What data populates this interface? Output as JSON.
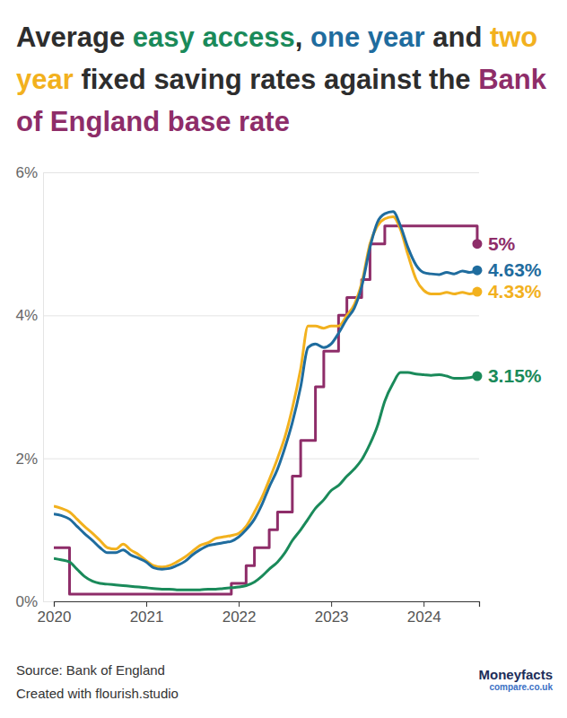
{
  "chart_data": {
    "type": "line",
    "title": "Average easy access, one year and two year fixed saving rates against the Bank of England base rate",
    "source": "Source: Bank of England",
    "credit": "Created with flourish.studio",
    "logo": "Moneyfacts",
    "logo_subtext": "compare.co.uk",
    "x": [
      2020,
      2020.08,
      2020.17,
      2020.25,
      2020.33,
      2020.42,
      2020.5,
      2020.58,
      2020.67,
      2020.75,
      2020.83,
      2020.92,
      2021,
      2021.08,
      2021.17,
      2021.25,
      2021.33,
      2021.42,
      2021.5,
      2021.58,
      2021.67,
      2021.75,
      2021.83,
      2021.92,
      2022,
      2022.08,
      2022.17,
      2022.25,
      2022.33,
      2022.42,
      2022.5,
      2022.58,
      2022.67,
      2022.75,
      2022.83,
      2022.92,
      2023,
      2023.08,
      2023.17,
      2023.25,
      2023.33,
      2023.42,
      2023.5,
      2023.58,
      2023.67,
      2023.75,
      2023.83,
      2023.92,
      2024,
      2024.08,
      2024.17,
      2024.25,
      2024.33,
      2024.42,
      2024.5,
      2024.58
    ],
    "xlim": [
      2020,
      2024.6
    ],
    "xticks": [
      2020,
      2021,
      2022,
      2023,
      2024
    ],
    "ylim": [
      0,
      6
    ],
    "yticks": [
      {
        "value": 0,
        "label": "0%"
      },
      {
        "value": 2,
        "label": "2%"
      },
      {
        "value": 4,
        "label": "4%"
      },
      {
        "value": 6,
        "label": "6%"
      }
    ],
    "grid": true,
    "data_labels": true,
    "series": [
      {
        "name": "easy access",
        "color": "#1a8a5a",
        "values": [
          0.6,
          0.58,
          0.55,
          0.45,
          0.35,
          0.28,
          0.25,
          0.24,
          0.23,
          0.22,
          0.21,
          0.2,
          0.19,
          0.18,
          0.17,
          0.17,
          0.16,
          0.16,
          0.16,
          0.16,
          0.17,
          0.17,
          0.18,
          0.19,
          0.2,
          0.22,
          0.27,
          0.35,
          0.45,
          0.55,
          0.68,
          0.85,
          1.0,
          1.15,
          1.3,
          1.42,
          1.55,
          1.62,
          1.75,
          1.85,
          1.98,
          2.2,
          2.45,
          2.8,
          3.05,
          3.2,
          3.2,
          3.18,
          3.17,
          3.16,
          3.17,
          3.15,
          3.12,
          3.12,
          3.13,
          3.15
        ],
        "value_labels": [
          null,
          null,
          null,
          null,
          null,
          null,
          null,
          null,
          null,
          null,
          null,
          null,
          null,
          null,
          null,
          null,
          null,
          null,
          null,
          null,
          null,
          null,
          null,
          null,
          null,
          null,
          null,
          null,
          null,
          null,
          null,
          null,
          null,
          null,
          null,
          null,
          null,
          null,
          null,
          null,
          null,
          null,
          null,
          null,
          null,
          null,
          null,
          null,
          null,
          null,
          null,
          null,
          null,
          null,
          null,
          "3.15%"
        ]
      },
      {
        "name": "one year",
        "color": "#1f6c9e",
        "values": [
          1.22,
          1.2,
          1.15,
          1.05,
          0.95,
          0.85,
          0.75,
          0.68,
          0.68,
          0.72,
          0.65,
          0.6,
          0.55,
          0.47,
          0.45,
          0.46,
          0.5,
          0.56,
          0.65,
          0.72,
          0.78,
          0.8,
          0.82,
          0.84,
          0.9,
          1.0,
          1.15,
          1.35,
          1.6,
          1.85,
          2.15,
          2.5,
          3.0,
          3.55,
          3.6,
          3.55,
          3.6,
          3.75,
          3.95,
          4.1,
          4.4,
          4.95,
          5.3,
          5.42,
          5.45,
          5.25,
          4.95,
          4.7,
          4.6,
          4.58,
          4.57,
          4.6,
          4.58,
          4.62,
          4.6,
          4.63
        ],
        "value_labels": [
          null,
          null,
          null,
          null,
          null,
          null,
          null,
          null,
          null,
          null,
          null,
          null,
          null,
          null,
          null,
          null,
          null,
          null,
          null,
          null,
          null,
          null,
          null,
          null,
          null,
          null,
          null,
          null,
          null,
          null,
          null,
          null,
          null,
          null,
          null,
          null,
          null,
          null,
          null,
          null,
          null,
          null,
          null,
          null,
          null,
          null,
          null,
          null,
          null,
          null,
          null,
          null,
          null,
          null,
          null,
          "4.63%"
        ]
      },
      {
        "name": "two year",
        "color": "#f2b11e",
        "values": [
          1.33,
          1.3,
          1.25,
          1.15,
          1.05,
          0.95,
          0.85,
          0.75,
          0.73,
          0.8,
          0.72,
          0.65,
          0.57,
          0.5,
          0.48,
          0.5,
          0.55,
          0.62,
          0.7,
          0.78,
          0.82,
          0.88,
          0.9,
          0.92,
          0.95,
          1.05,
          1.25,
          1.45,
          1.7,
          2.0,
          2.3,
          2.7,
          3.25,
          3.85,
          3.85,
          3.82,
          3.85,
          3.85,
          4.0,
          4.15,
          4.45,
          5.0,
          5.25,
          5.35,
          5.38,
          5.2,
          4.85,
          4.5,
          4.35,
          4.3,
          4.3,
          4.32,
          4.3,
          4.32,
          4.3,
          4.33
        ],
        "value_labels": [
          null,
          null,
          null,
          null,
          null,
          null,
          null,
          null,
          null,
          null,
          null,
          null,
          null,
          null,
          null,
          null,
          null,
          null,
          null,
          null,
          null,
          null,
          null,
          null,
          null,
          null,
          null,
          null,
          null,
          null,
          null,
          null,
          null,
          null,
          null,
          null,
          null,
          null,
          null,
          null,
          null,
          null,
          null,
          null,
          null,
          null,
          null,
          null,
          null,
          null,
          null,
          null,
          null,
          null,
          null,
          "4.33%"
        ]
      },
      {
        "name": "Bank of England base rate",
        "color": "#8e2d69",
        "type": "step",
        "values": [
          0.75,
          0.75,
          0.1,
          0.1,
          0.1,
          0.1,
          0.1,
          0.1,
          0.1,
          0.1,
          0.1,
          0.1,
          0.1,
          0.1,
          0.1,
          0.1,
          0.1,
          0.1,
          0.1,
          0.1,
          0.1,
          0.1,
          0.1,
          0.25,
          0.25,
          0.5,
          0.75,
          0.75,
          1,
          1.25,
          1.25,
          1.75,
          2.25,
          2.25,
          3,
          3.5,
          3.5,
          4,
          4.25,
          4.25,
          4.5,
          5,
          5,
          5.25,
          5.25,
          5.25,
          5.25,
          5.25,
          5.25,
          5.25,
          5.25,
          5.25,
          5.25,
          5.25,
          5.25,
          5
        ],
        "value_labels": [
          null,
          null,
          null,
          null,
          null,
          null,
          null,
          null,
          null,
          null,
          null,
          null,
          null,
          null,
          null,
          null,
          null,
          null,
          null,
          null,
          null,
          null,
          null,
          null,
          null,
          null,
          null,
          null,
          null,
          null,
          null,
          null,
          null,
          null,
          null,
          null,
          null,
          null,
          null,
          null,
          null,
          null,
          null,
          null,
          null,
          null,
          null,
          null,
          null,
          null,
          null,
          null,
          null,
          null,
          null,
          "5%"
        ]
      }
    ]
  }
}
